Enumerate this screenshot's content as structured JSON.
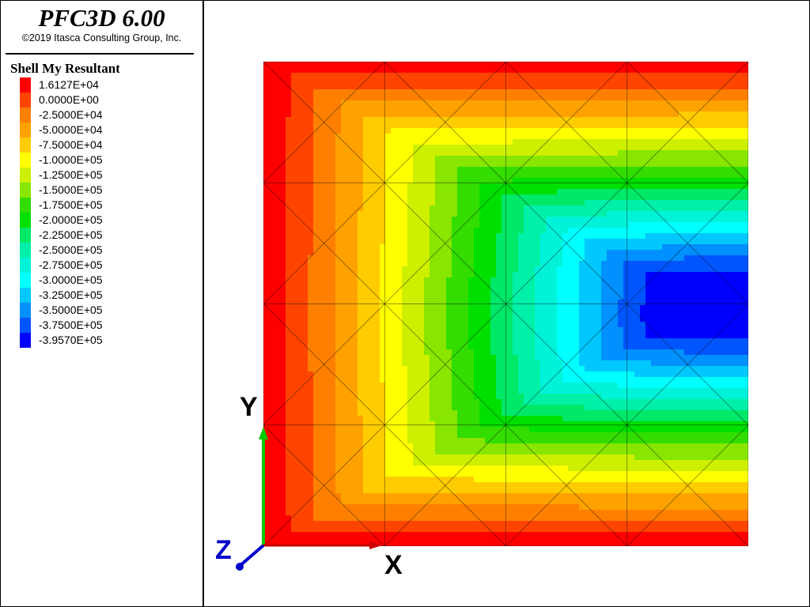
{
  "app": {
    "title": "PFC3D 6.00",
    "copyright": "©2019 Itasca Consulting Group, Inc."
  },
  "legend": {
    "title": "Shell My Resultant",
    "items": [
      {
        "label": "1.6127E+04",
        "color": "#ff0000"
      },
      {
        "label": "0.0000E+00",
        "color": "#ff4400"
      },
      {
        "label": "-2.5000E+04",
        "color": "#ff8000"
      },
      {
        "label": "-5.0000E+04",
        "color": "#ffa200"
      },
      {
        "label": "-7.5000E+04",
        "color": "#ffcc00"
      },
      {
        "label": "-1.0000E+05",
        "color": "#ffff00"
      },
      {
        "label": "-1.2500E+05",
        "color": "#ccf000"
      },
      {
        "label": "-1.5000E+05",
        "color": "#88e600"
      },
      {
        "label": "-1.7500E+05",
        "color": "#33dd00"
      },
      {
        "label": "-2.0000E+05",
        "color": "#00e000"
      },
      {
        "label": "-2.2500E+05",
        "color": "#00e868"
      },
      {
        "label": "-2.5000E+05",
        "color": "#00f0a8"
      },
      {
        "label": "-2.7500E+05",
        "color": "#00f2d8"
      },
      {
        "label": "-3.0000E+05",
        "color": "#00ffff"
      },
      {
        "label": "-3.2500E+05",
        "color": "#00c8ff"
      },
      {
        "label": "-3.5000E+05",
        "color": "#0090ff"
      },
      {
        "label": "-3.7500E+05",
        "color": "#0055ff"
      },
      {
        "label": "-3.9570E+05",
        "color": "#0000ff"
      }
    ]
  },
  "axes": {
    "x_label": "X",
    "y_label": "Y",
    "z_label": "Z",
    "x_color": "#cc0000",
    "y_color": "#00cc00",
    "z_color": "#0000cc"
  }
}
